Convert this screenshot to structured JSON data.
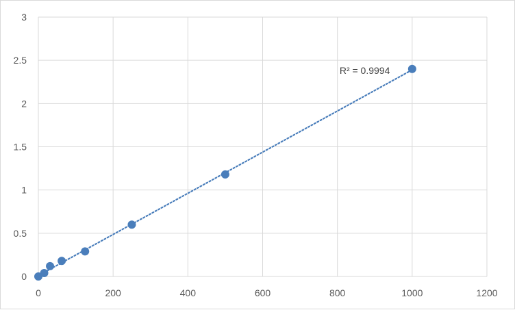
{
  "chart_data": {
    "type": "scatter",
    "title": "",
    "xlabel": "",
    "ylabel": "",
    "xlim": [
      0,
      1200
    ],
    "ylim": [
      0,
      3
    ],
    "x_ticks": [
      0,
      200,
      400,
      600,
      800,
      1000,
      1200
    ],
    "y_ticks": [
      0,
      0.5,
      1,
      1.5,
      2,
      2.5,
      3
    ],
    "x_tick_labels": [
      "0",
      "200",
      "400",
      "600",
      "800",
      "1000",
      "1200"
    ],
    "y_tick_labels": [
      "0",
      "0.5",
      "1",
      "1.5",
      "2",
      "2.5",
      "3"
    ],
    "grid": true,
    "legend": "none",
    "series": [
      {
        "x": [
          0,
          15.6,
          31.25,
          62.5,
          125,
          250,
          500,
          1000
        ],
        "y": [
          0.0,
          0.04,
          0.12,
          0.18,
          0.29,
          0.6,
          1.18,
          2.4
        ],
        "color": "#4a7ebb",
        "marker": "circle"
      }
    ],
    "trendline": {
      "type": "linear",
      "style": "dotted",
      "color": "#4a7ebb",
      "x_range": [
        0,
        1000
      ],
      "y_range": [
        0.01,
        2.39
      ]
    },
    "annotations": [
      {
        "text": "R² = 0.9994",
        "x": 1000,
        "y": 2.4
      }
    ]
  }
}
